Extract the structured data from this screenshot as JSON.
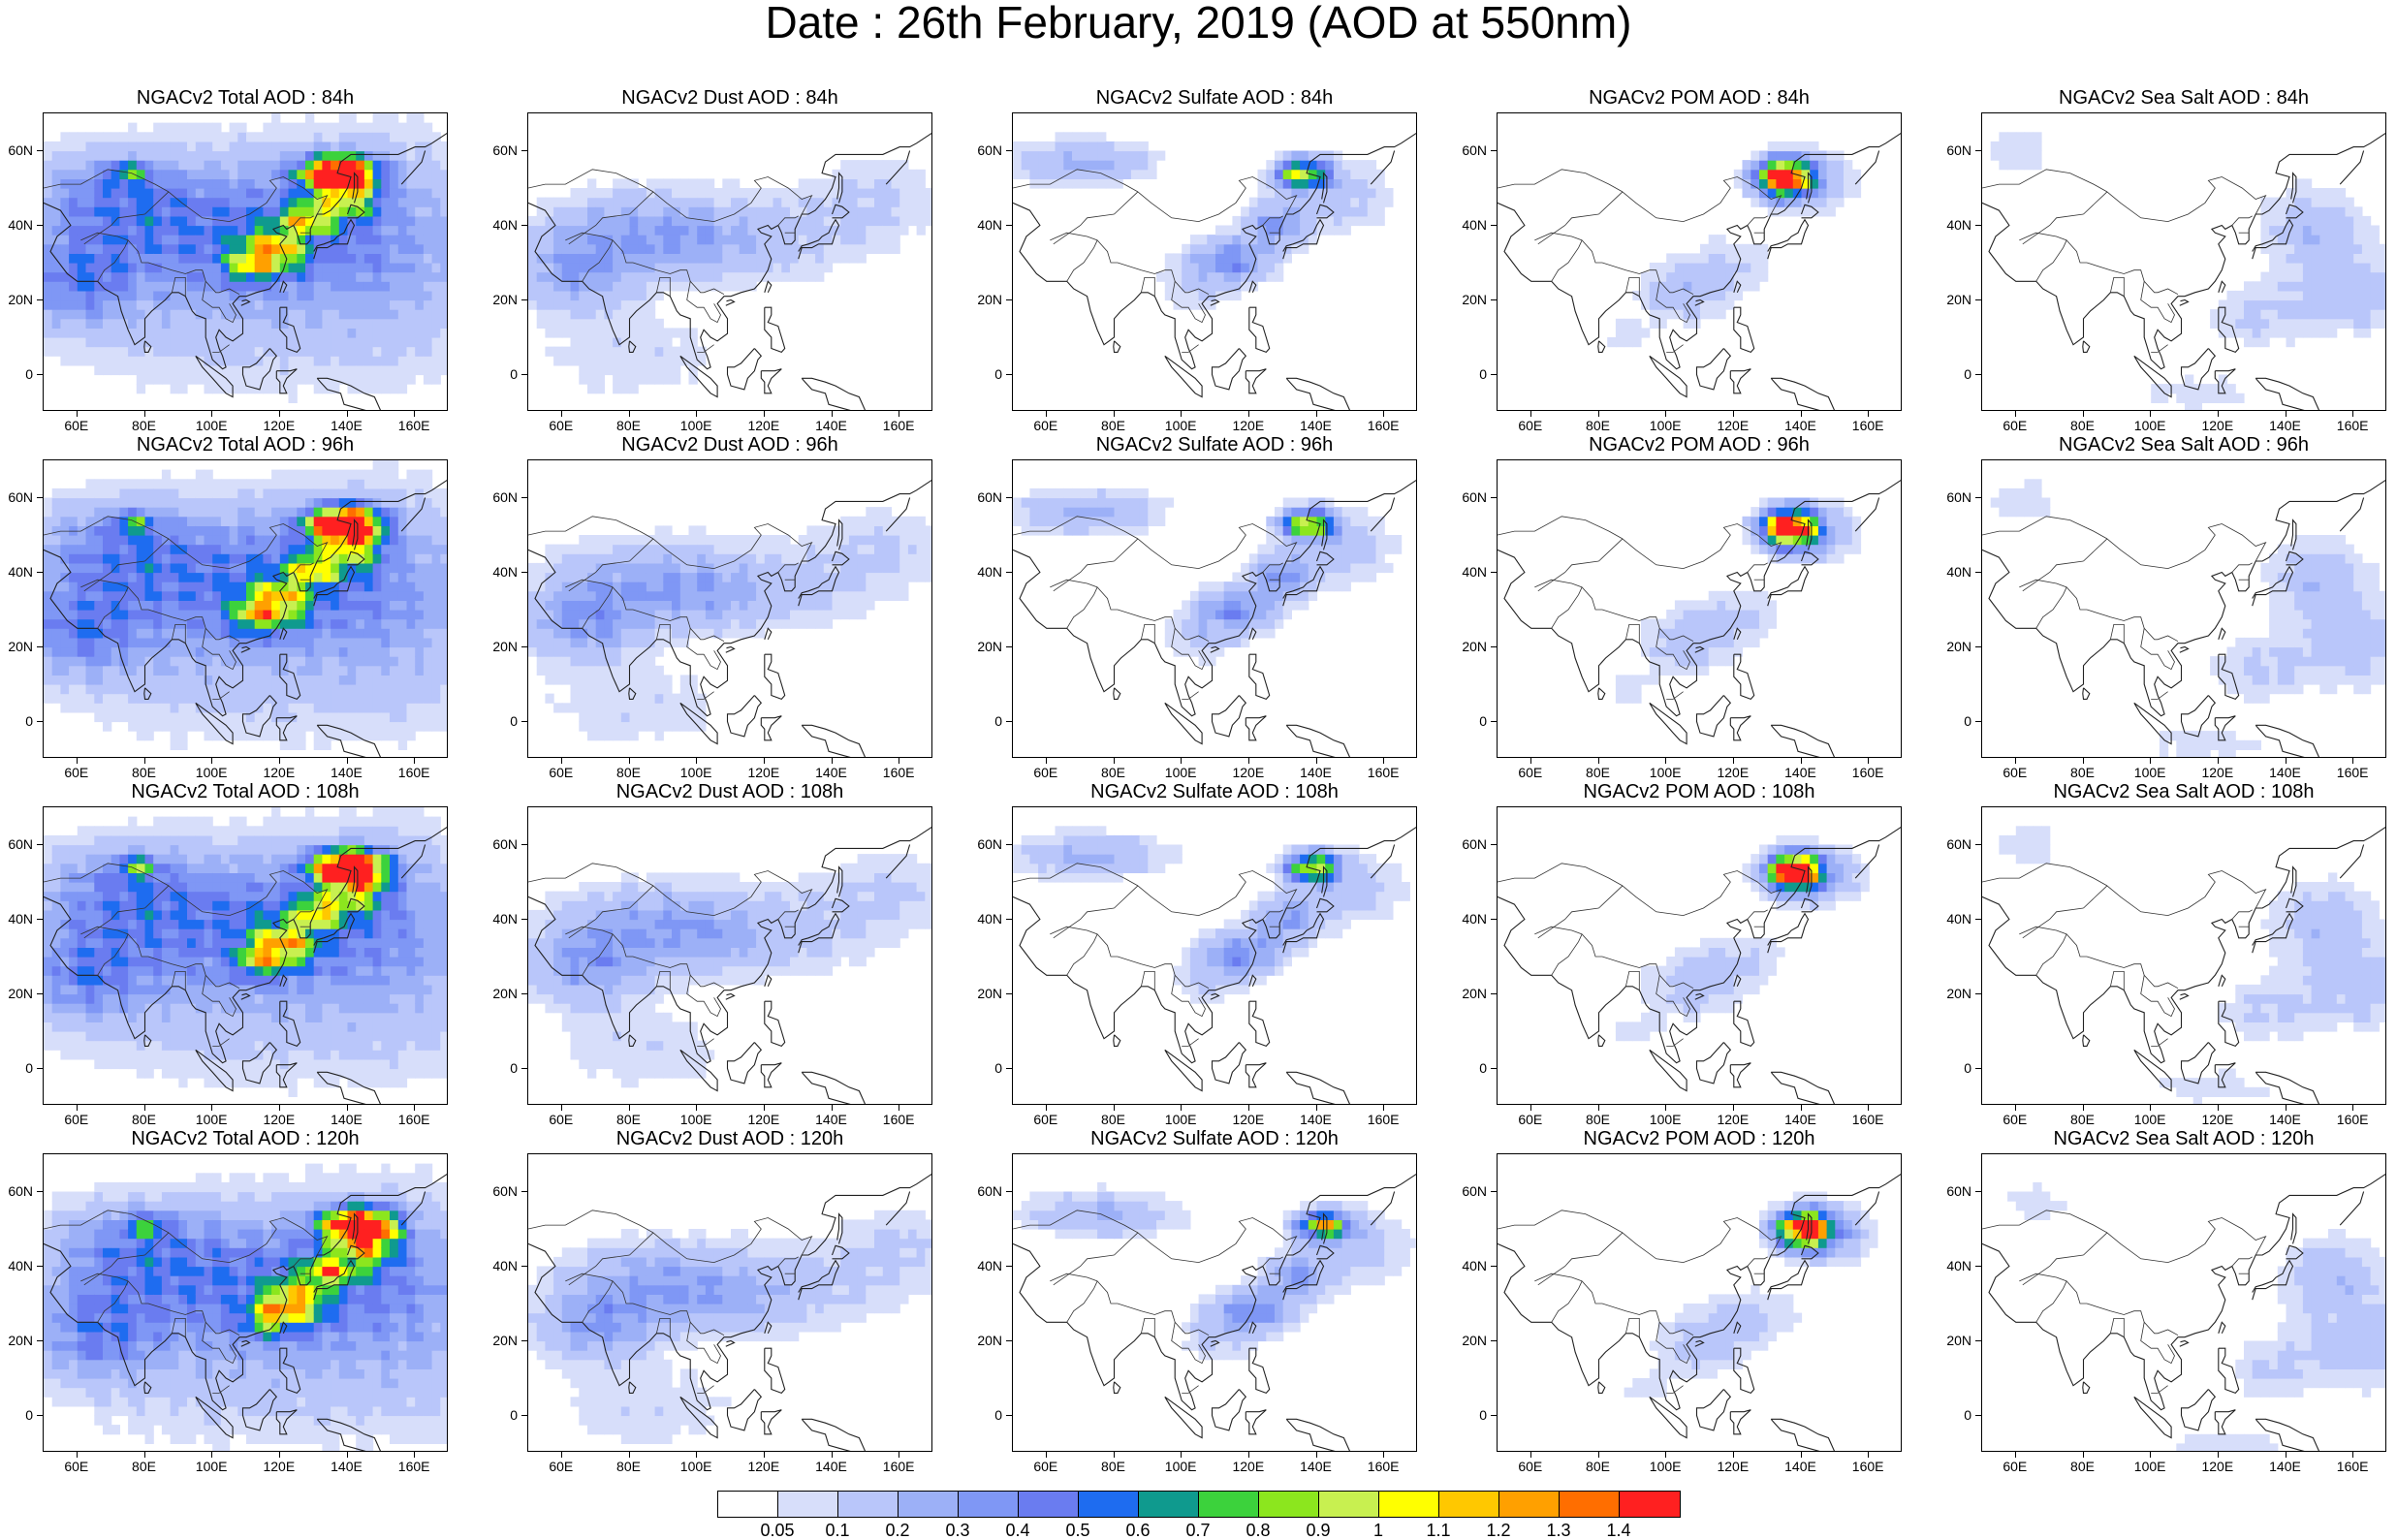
{
  "title": "Date : 26th February, 2019 (AOD at 550nm)",
  "axes": {
    "ylabels": [
      "60N",
      "40N",
      "20N",
      "0"
    ],
    "xlabels": [
      "60E",
      "80E",
      "100E",
      "120E",
      "140E",
      "160E"
    ],
    "lon_range": [
      50,
      170
    ],
    "lat_range": [
      -10,
      70
    ]
  },
  "panels": [
    {
      "title": "NGACv2 Total AOD : 84h",
      "field": "total",
      "hour": 84
    },
    {
      "title": "NGACv2 Dust AOD : 84h",
      "field": "dust",
      "hour": 84
    },
    {
      "title": "NGACv2 Sulfate AOD : 84h",
      "field": "sulfate",
      "hour": 84
    },
    {
      "title": "NGACv2 POM AOD : 84h",
      "field": "pom",
      "hour": 84
    },
    {
      "title": "NGACv2 Sea Salt AOD : 84h",
      "field": "seasalt",
      "hour": 84
    },
    {
      "title": "NGACv2 Total AOD : 96h",
      "field": "total",
      "hour": 96
    },
    {
      "title": "NGACv2 Dust AOD : 96h",
      "field": "dust",
      "hour": 96
    },
    {
      "title": "NGACv2 Sulfate AOD : 96h",
      "field": "sulfate",
      "hour": 96
    },
    {
      "title": "NGACv2 POM AOD : 96h",
      "field": "pom",
      "hour": 96
    },
    {
      "title": "NGACv2 Sea Salt AOD : 96h",
      "field": "seasalt",
      "hour": 96
    },
    {
      "title": "NGACv2 Total AOD : 108h",
      "field": "total",
      "hour": 108
    },
    {
      "title": "NGACv2 Dust AOD : 108h",
      "field": "dust",
      "hour": 108
    },
    {
      "title": "NGACv2 Sulfate AOD : 108h",
      "field": "sulfate",
      "hour": 108
    },
    {
      "title": "NGACv2 POM AOD : 108h",
      "field": "pom",
      "hour": 108
    },
    {
      "title": "NGACv2 Sea Salt AOD : 108h",
      "field": "seasalt",
      "hour": 108
    },
    {
      "title": "NGACv2 Total AOD : 120h",
      "field": "total",
      "hour": 120
    },
    {
      "title": "NGACv2 Dust AOD : 120h",
      "field": "dust",
      "hour": 120
    },
    {
      "title": "NGACv2 Sulfate AOD : 120h",
      "field": "sulfate",
      "hour": 120
    },
    {
      "title": "NGACv2 POM AOD : 120h",
      "field": "pom",
      "hour": 120
    },
    {
      "title": "NGACv2 Sea Salt  AOD : 120h",
      "field": "seasalt",
      "hour": 120
    }
  ],
  "colorbar": {
    "colors": [
      "#ffffff",
      "#d7defa",
      "#b9c6fa",
      "#9cb0f7",
      "#7f97f5",
      "#6a7cf0",
      "#1e6cf0",
      "#0f9a8e",
      "#3cd23c",
      "#8ce61e",
      "#c8f050",
      "#ffff00",
      "#ffc800",
      "#ffa000",
      "#ff6e00",
      "#ff2020"
    ],
    "labels": [
      "0.05",
      "0.1",
      "0.2",
      "0.3",
      "0.4",
      "0.5",
      "0.6",
      "0.7",
      "0.8",
      "0.9",
      "1",
      "1.1",
      "1.2",
      "1.3",
      "1.4"
    ]
  }
}
